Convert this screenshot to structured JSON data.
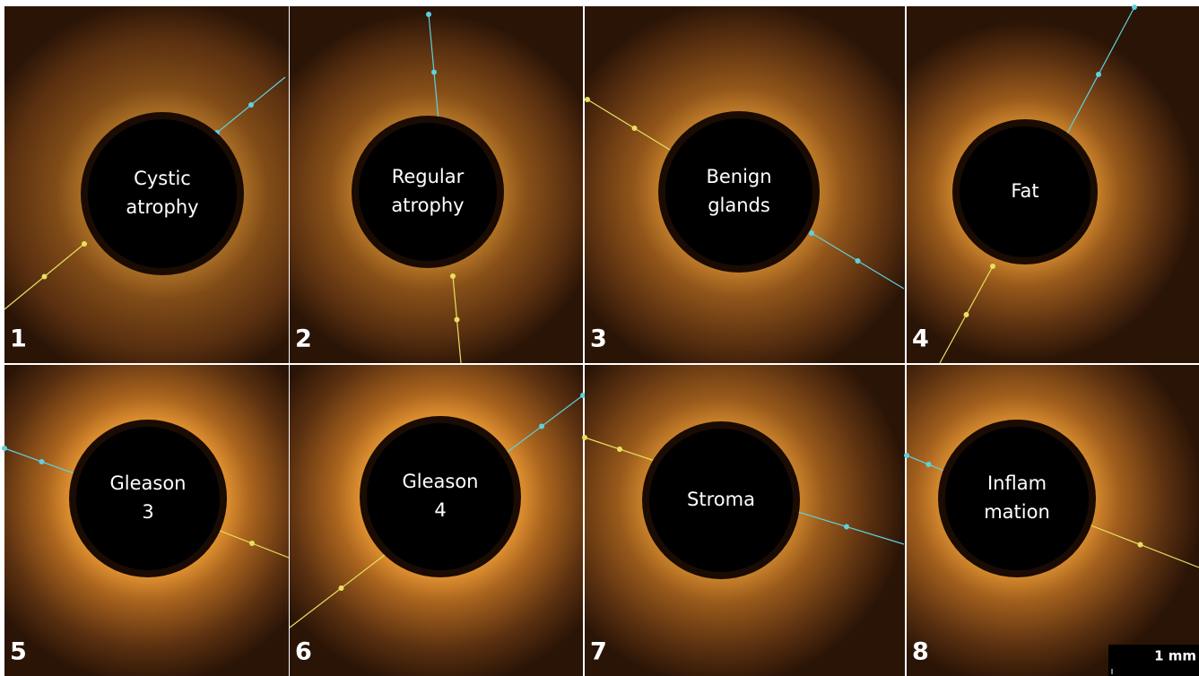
{
  "panels": [
    {
      "number": "1",
      "label": [
        "Cystic",
        "atrophy"
      ]
    },
    {
      "number": "2",
      "label": [
        "Regular",
        "atrophy"
      ]
    },
    {
      "number": "3",
      "label": [
        "Benign",
        "glands"
      ]
    },
    {
      "number": "4",
      "label": [
        "Fat"
      ]
    },
    {
      "number": "5",
      "label": [
        "Gleason",
        "3"
      ]
    },
    {
      "number": "6",
      "label": [
        "Gleason",
        "4"
      ]
    },
    {
      "number": "7",
      "label": [
        "Stroma"
      ]
    },
    {
      "number": "8",
      "label": [
        "Inflam",
        "mation"
      ]
    }
  ],
  "scale_bar": "1 mm"
}
